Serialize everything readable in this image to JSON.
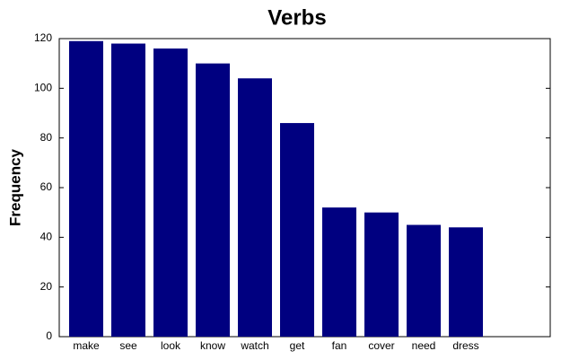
{
  "chart_data": {
    "type": "bar",
    "title": "Verbs",
    "y_label": "Frequency",
    "categories": [
      "make",
      "see",
      "look",
      "know",
      "watch",
      "get",
      "fan",
      "cover",
      "need",
      "dress"
    ],
    "values": [
      119,
      118,
      116,
      110,
      104,
      86,
      52,
      50,
      45,
      44
    ],
    "color": "#000080",
    "ylim": [
      0,
      120
    ],
    "yticks": [
      0,
      20,
      40,
      60,
      80,
      100,
      120
    ]
  }
}
